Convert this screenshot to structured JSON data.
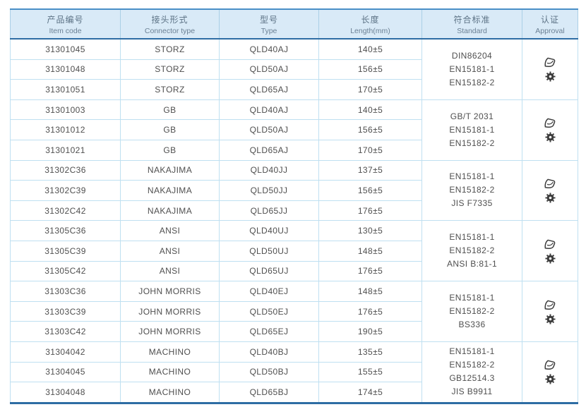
{
  "table": {
    "header": {
      "columns": [
        {
          "zh": "产品编号",
          "en": "Item code"
        },
        {
          "zh": "接头形式",
          "en": "Connector type"
        },
        {
          "zh": "型号",
          "en": "Type"
        },
        {
          "zh": "长度",
          "en": "Length(mm)"
        },
        {
          "zh": "符合标准",
          "en": "Standard"
        },
        {
          "zh": "认证",
          "en": "Approval"
        }
      ]
    },
    "groups": [
      {
        "rows": [
          {
            "item_code": "31301045",
            "connector_type": "STORZ",
            "type": "QLD40AJ",
            "length": "140±5"
          },
          {
            "item_code": "31301048",
            "connector_type": "STORZ",
            "type": "QLD50AJ",
            "length": "156±5"
          },
          {
            "item_code": "31301051",
            "connector_type": "STORZ",
            "type": "QLD65AJ",
            "length": "170±5"
          }
        ],
        "standards": [
          "DIN86204",
          "EN15181-1",
          "EN15182-2"
        ],
        "approval_icons": [
          "certification-mark",
          "wheelmark"
        ]
      },
      {
        "rows": [
          {
            "item_code": "31301003",
            "connector_type": "GB",
            "type": "QLD40AJ",
            "length": "140±5"
          },
          {
            "item_code": "31301012",
            "connector_type": "GB",
            "type": "QLD50AJ",
            "length": "156±5"
          },
          {
            "item_code": "31301021",
            "connector_type": "GB",
            "type": "QLD65AJ",
            "length": "170±5"
          }
        ],
        "standards": [
          "GB/T 2031",
          "EN15181-1",
          "EN15182-2"
        ],
        "approval_icons": [
          "certification-mark",
          "wheelmark"
        ]
      },
      {
        "rows": [
          {
            "item_code": "31302C36",
            "connector_type": "NAKAJIMA",
            "type": "QLD40JJ",
            "length": "137±5"
          },
          {
            "item_code": "31302C39",
            "connector_type": "NAKAJIMA",
            "type": "QLD50JJ",
            "length": "156±5"
          },
          {
            "item_code": "31302C42",
            "connector_type": "NAKAJIMA",
            "type": "QLD65JJ",
            "length": "176±5"
          }
        ],
        "standards": [
          "EN15181-1",
          "EN15182-2",
          "JIS F7335"
        ],
        "approval_icons": [
          "certification-mark",
          "wheelmark"
        ]
      },
      {
        "rows": [
          {
            "item_code": "31305C36",
            "connector_type": "ANSI",
            "type": "QLD40UJ",
            "length": "130±5"
          },
          {
            "item_code": "31305C39",
            "connector_type": "ANSI",
            "type": "QLD50UJ",
            "length": "148±5"
          },
          {
            "item_code": "31305C42",
            "connector_type": "ANSI",
            "type": "QLD65UJ",
            "length": "176±5"
          }
        ],
        "standards": [
          "EN15181-1",
          "EN15182-2",
          "ANSI B:81-1"
        ],
        "approval_icons": [
          "certification-mark",
          "wheelmark"
        ]
      },
      {
        "rows": [
          {
            "item_code": "31303C36",
            "connector_type": "JOHN MORRIS",
            "type": "QLD40EJ",
            "length": "148±5"
          },
          {
            "item_code": "31303C39",
            "connector_type": "JOHN MORRIS",
            "type": "QLD50EJ",
            "length": "176±5"
          },
          {
            "item_code": "31303C42",
            "connector_type": "JOHN MORRIS",
            "type": "QLD65EJ",
            "length": "190±5"
          }
        ],
        "standards": [
          "EN15181-1",
          "EN15182-2",
          "BS336"
        ],
        "approval_icons": [
          "certification-mark",
          "wheelmark"
        ]
      },
      {
        "rows": [
          {
            "item_code": "31304042",
            "connector_type": "MACHINO",
            "type": "QLD40BJ",
            "length": "135±5"
          },
          {
            "item_code": "31304045",
            "connector_type": "MACHINO",
            "type": "QLD50BJ",
            "length": "155±5"
          },
          {
            "item_code": "31304048",
            "connector_type": "MACHINO",
            "type": "QLD65BJ",
            "length": "174±5"
          }
        ],
        "standards": [
          "EN15181-1",
          "EN15182-2",
          "GB12514.3",
          "JIS B9911"
        ],
        "approval_icons": [
          "certification-mark",
          "wheelmark"
        ]
      }
    ]
  },
  "theme": {
    "header_bg": "#d9eaf7",
    "border_light": "#bfe0f1",
    "border_top": "#4a8fc7",
    "border_dark": "#2e6da4",
    "body_text": "#4f4f4f",
    "header_text": "#5d7386",
    "icon_color": "#3c3c3c"
  }
}
